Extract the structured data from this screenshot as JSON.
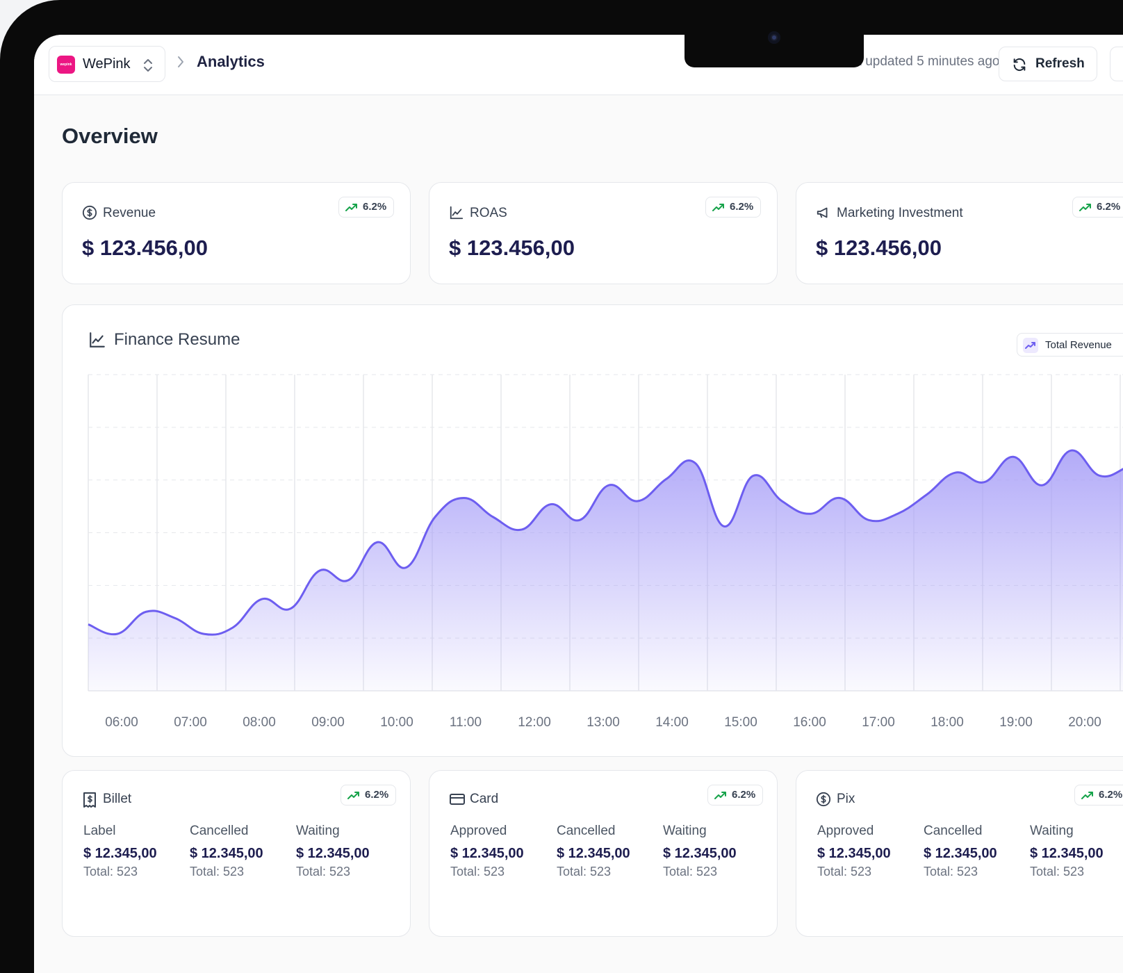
{
  "header": {
    "brand": {
      "name": "WePink",
      "logo_text": "wepink",
      "color": "#ec1683"
    },
    "breadcrumb_current": "Analytics",
    "last_updated": "Last updated 5 minutes ago",
    "refresh_label": "Refresh"
  },
  "page_title": "Overview",
  "kpis": [
    {
      "title": "Revenue",
      "icon": "dollar-circle-icon",
      "value": "$ 123.456,00",
      "badge": "6.2%"
    },
    {
      "title": "ROAS",
      "icon": "line-chart-icon",
      "value": "$ 123.456,00",
      "badge": "6.2%"
    },
    {
      "title": "Marketing Investment",
      "icon": "megaphone-icon",
      "value": "$ 123.456,00",
      "badge": "6.2%"
    }
  ],
  "finance": {
    "title": "Finance Resume",
    "legend": "Total Revenue",
    "line_color": "#6d5ef0",
    "fill_color": "#a59cf7"
  },
  "chart_data": {
    "type": "area",
    "x_labels": [
      "06:00",
      "07:00",
      "08:00",
      "09:00",
      "10:00",
      "11:00",
      "12:00",
      "13:00",
      "14:00",
      "15:00",
      "16:00",
      "17:00",
      "18:00",
      "19:00",
      "20:00"
    ],
    "values": [
      0.21,
      0.18,
      0.25,
      0.23,
      0.18,
      0.2,
      0.29,
      0.26,
      0.38,
      0.35,
      0.47,
      0.39,
      0.55,
      0.61,
      0.55,
      0.51,
      0.59,
      0.54,
      0.65,
      0.6,
      0.67,
      0.72,
      0.52,
      0.68,
      0.6,
      0.56,
      0.61,
      0.54,
      0.56,
      0.62,
      0.69,
      0.66,
      0.74,
      0.65,
      0.76,
      0.68,
      0.71,
      0.75
    ],
    "ylim": [
      0,
      1
    ],
    "grid": true
  },
  "payments": [
    {
      "title": "Billet",
      "icon": "receipt-dollar-icon",
      "badge": "6.2%",
      "columns": [
        {
          "label": "Label",
          "amount": "$ 12.345,00",
          "total": "Total: 523"
        },
        {
          "label": "Cancelled",
          "amount": "$ 12.345,00",
          "total": "Total: 523"
        },
        {
          "label": "Waiting",
          "amount": "$ 12.345,00",
          "total": "Total: 523"
        }
      ]
    },
    {
      "title": "Card",
      "icon": "credit-card-icon",
      "badge": "6.2%",
      "columns": [
        {
          "label": "Approved",
          "amount": "$ 12.345,00",
          "total": "Total: 523"
        },
        {
          "label": "Cancelled",
          "amount": "$ 12.345,00",
          "total": "Total: 523"
        },
        {
          "label": "Waiting",
          "amount": "$ 12.345,00",
          "total": "Total: 523"
        }
      ]
    },
    {
      "title": "Pix",
      "icon": "dollar-circle-icon",
      "badge": "6.2%",
      "columns": [
        {
          "label": "Approved",
          "amount": "$ 12.345,00",
          "total": "Total: 523"
        },
        {
          "label": "Cancelled",
          "amount": "$ 12.345,00",
          "total": "Total: 523"
        },
        {
          "label": "Waiting",
          "amount": "$ 12.345,00",
          "total": "Total: 523"
        }
      ]
    }
  ]
}
